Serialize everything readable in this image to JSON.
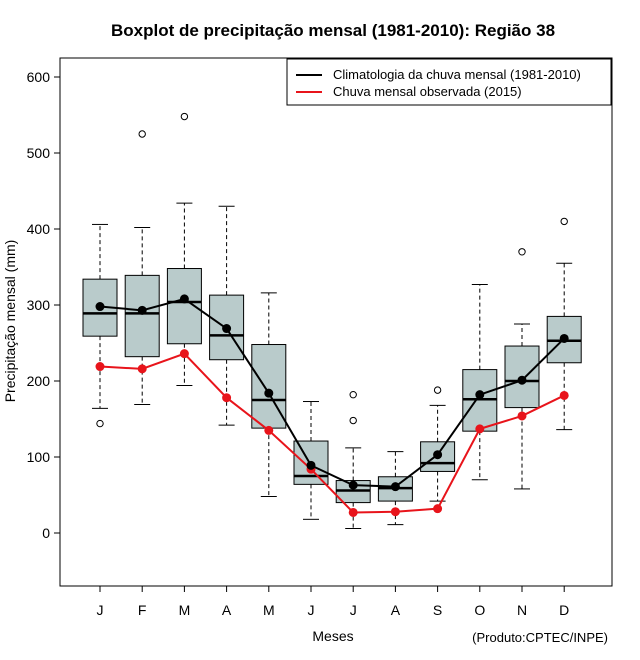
{
  "chart_data": {
    "type": "boxplot",
    "title": "Boxplot de precipitação mensal (1981-2010): Região 38",
    "xlabel": "Meses",
    "ylabel": "Precipitação mensal (mm)",
    "credit": "(Produto:CPTEC/INPE)",
    "ylim": [
      -70,
      625
    ],
    "yticks": [
      0,
      100,
      200,
      300,
      400,
      500,
      600
    ],
    "categories": [
      "J",
      "F",
      "M",
      "A",
      "M",
      "J",
      "J",
      "A",
      "S",
      "O",
      "N",
      "D"
    ],
    "boxes": [
      {
        "whisker_low": 164,
        "q1": 259,
        "median": 289,
        "q3": 334,
        "whisker_high": 406,
        "outliers": [
          144
        ]
      },
      {
        "whisker_low": 169,
        "q1": 232,
        "median": 289,
        "q3": 339,
        "whisker_high": 402,
        "outliers": [
          525
        ]
      },
      {
        "whisker_low": 194,
        "q1": 249,
        "median": 304,
        "q3": 348,
        "whisker_high": 434,
        "outliers": [
          548
        ]
      },
      {
        "whisker_low": 142,
        "q1": 228,
        "median": 260,
        "q3": 313,
        "whisker_high": 430,
        "outliers": []
      },
      {
        "whisker_low": 48,
        "q1": 138,
        "median": 175,
        "q3": 248,
        "whisker_high": 316,
        "outliers": []
      },
      {
        "whisker_low": 18,
        "q1": 64,
        "median": 75,
        "q3": 121,
        "whisker_high": 173,
        "outliers": []
      },
      {
        "whisker_low": 6,
        "q1": 40,
        "median": 56,
        "q3": 69,
        "whisker_high": 112,
        "outliers": [
          182,
          148
        ]
      },
      {
        "whisker_low": 11,
        "q1": 42,
        "median": 59,
        "q3": 74,
        "whisker_high": 107,
        "outliers": []
      },
      {
        "whisker_low": 42,
        "q1": 81,
        "median": 92,
        "q3": 120,
        "whisker_high": 168,
        "outliers": [
          188
        ]
      },
      {
        "whisker_low": 70,
        "q1": 134,
        "median": 176,
        "q3": 215,
        "whisker_high": 327,
        "outliers": []
      },
      {
        "whisker_low": 58,
        "q1": 165,
        "median": 200,
        "q3": 246,
        "whisker_high": 275,
        "outliers": [
          370
        ]
      },
      {
        "whisker_low": 136,
        "q1": 224,
        "median": 253,
        "q3": 285,
        "whisker_high": 355,
        "outliers": [
          410
        ]
      }
    ],
    "series": [
      {
        "name": "Climatologia da chuva mensal (1981-2010)",
        "color": "#000000",
        "values": [
          298,
          293,
          308,
          269,
          184,
          89,
          63,
          61,
          103,
          182,
          201,
          256
        ]
      },
      {
        "name": "Chuva mensal observada (2015)",
        "color": "#e8141b",
        "values": [
          219,
          216,
          236,
          178,
          135,
          84,
          27,
          28,
          32,
          137,
          154,
          181
        ]
      }
    ],
    "box_color": "#b9cbcb",
    "legend_position": "top-right"
  }
}
